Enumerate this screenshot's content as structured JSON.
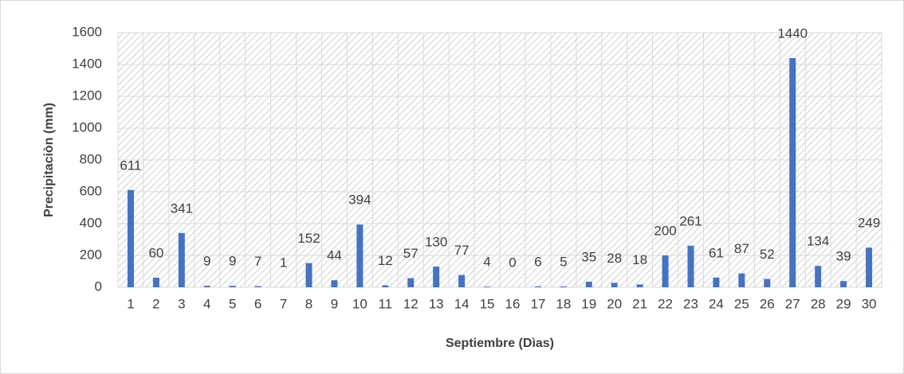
{
  "chart_data": {
    "type": "bar",
    "x_label": "Septiembre (Dìas)",
    "y_label": "Precipitaciòn (mm)",
    "categories": [
      "1",
      "2",
      "3",
      "4",
      "5",
      "6",
      "7",
      "8",
      "9",
      "10",
      "11",
      "12",
      "13",
      "14",
      "15",
      "16",
      "17",
      "18",
      "19",
      "20",
      "21",
      "22",
      "23",
      "24",
      "25",
      "26",
      "27",
      "28",
      "29",
      "30"
    ],
    "values": [
      611,
      60,
      341,
      9,
      9,
      7,
      1,
      152,
      44,
      394,
      12,
      57,
      130,
      77,
      4,
      0,
      6,
      5,
      35,
      28,
      18,
      200,
      261,
      61,
      87,
      52,
      1440,
      134,
      39,
      249
    ],
    "color": "#4472c4",
    "ylim": [
      0,
      1600
    ],
    "yticks": [
      0,
      200,
      400,
      600,
      800,
      1000,
      1200,
      1400,
      1600
    ],
    "grid": true
  }
}
